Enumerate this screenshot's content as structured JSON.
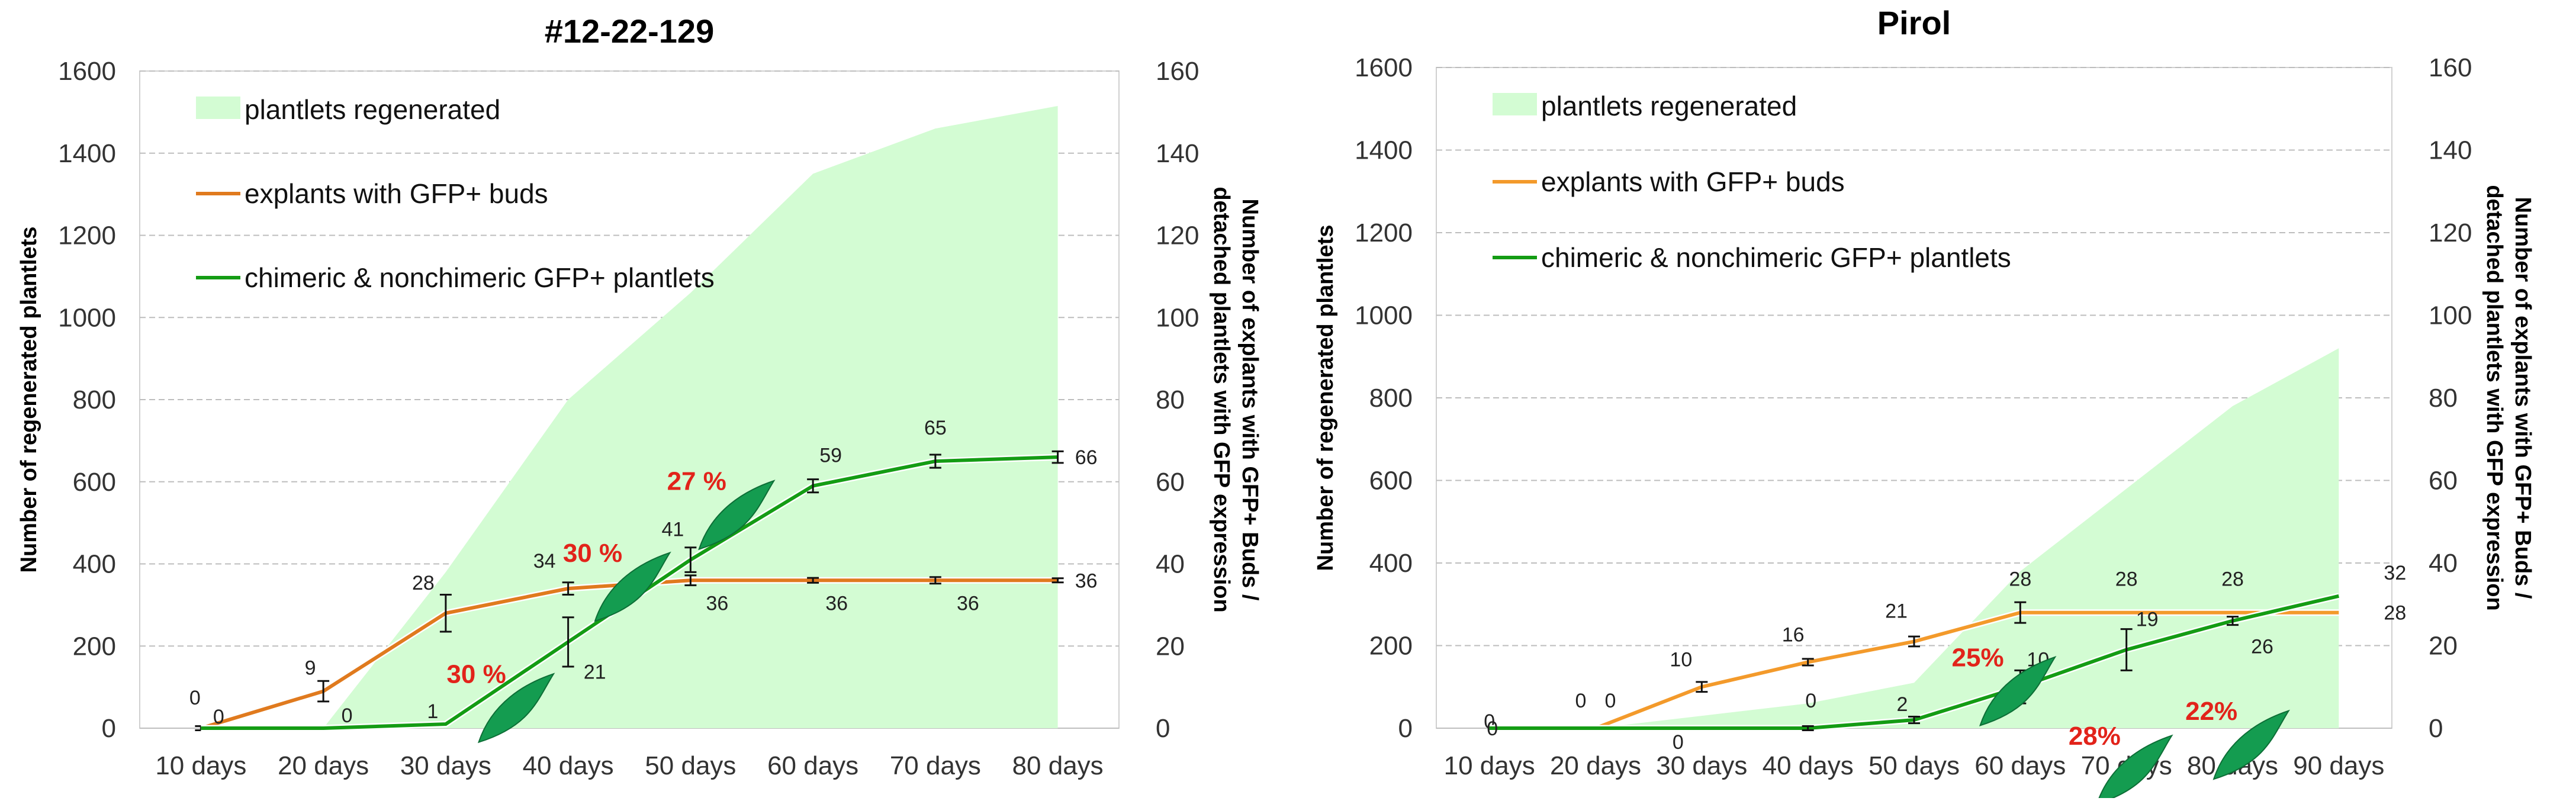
{
  "chart_data": [
    {
      "type": "area+line",
      "title": "#12-22-129",
      "categories": [
        "10 days",
        "20 days",
        "30 days",
        "40 days",
        "50 days",
        "60 days",
        "70 days",
        "80 days"
      ],
      "ylabel_left": "Number of regenerated plantlets",
      "ylabel_right": "Number of explants with GFP+ Buds / detached plantlets with GFP expression",
      "ylim_left": [
        0,
        1600
      ],
      "ylim_right": [
        0,
        160
      ],
      "yticks_left": [
        "0",
        "200",
        "400",
        "600",
        "800",
        "1000",
        "1200",
        "1400",
        "1600"
      ],
      "yticks_right": [
        "0",
        "20",
        "40",
        "60",
        "80",
        "100",
        "120",
        "140",
        "160"
      ],
      "grid": true,
      "legend": "top-left",
      "series": [
        {
          "name": "plantlets regenerated",
          "kind": "area",
          "axis": "left",
          "color": "#d3fcd3",
          "values": [
            0,
            0,
            380,
            800,
            1060,
            1350,
            1460,
            1515
          ]
        },
        {
          "name": "explants with GFP+ buds",
          "kind": "line",
          "axis": "right",
          "color": "#e07a1e",
          "values": [
            0,
            9,
            28,
            34,
            36,
            36,
            36,
            36
          ],
          "errors": [
            0.5,
            2.5,
            4.5,
            1.5,
            1.2,
            0.6,
            0.8,
            0.5
          ],
          "labels": [
            "0",
            "9",
            "28",
            "34",
            "36",
            "36",
            "36",
            "36"
          ]
        },
        {
          "name": "chimeric & nonchimeric GFP+ plantlets",
          "kind": "line",
          "axis": "right",
          "color": "#149c14",
          "values": [
            0,
            0,
            1,
            21,
            41,
            59,
            65,
            66
          ],
          "errors": [
            0,
            0,
            0,
            6,
            3,
            1.6,
            1.6,
            1.4
          ],
          "labels": [
            "0",
            "0",
            "1",
            "21",
            "41",
            "59",
            "65",
            "66"
          ]
        }
      ],
      "annotations": [
        {
          "text": "30 %",
          "x_index": 2.25,
          "y": 11
        },
        {
          "text": "30 %",
          "x_index": 3.2,
          "y": 40.5
        },
        {
          "text": "27 %",
          "x_index": 4.05,
          "y": 58
        }
      ]
    },
    {
      "type": "area+line",
      "title": "Pirol",
      "categories": [
        "10 days",
        "20 days",
        "30 days",
        "40 days",
        "50 days",
        "60 days",
        "70 days",
        "80 days",
        "90 days"
      ],
      "ylabel_left": "Number of regenerated plantlets",
      "ylabel_right": "Number of explants with GFP+ Buds / detached plantlets with GFP expression",
      "ylim_left": [
        0,
        1600
      ],
      "ylim_right": [
        0,
        160
      ],
      "yticks_left": [
        "0",
        "200",
        "400",
        "600",
        "800",
        "1000",
        "1200",
        "1400",
        "1600"
      ],
      "yticks_right": [
        "0",
        "20",
        "40",
        "60",
        "80",
        "100",
        "120",
        "140",
        "160"
      ],
      "grid": true,
      "legend": "top-left",
      "series": [
        {
          "name": "plantlets regenerated",
          "kind": "area",
          "axis": "left",
          "color": "#d3fcd3",
          "values": [
            0,
            0,
            30,
            60,
            110,
            380,
            580,
            780,
            920
          ]
        },
        {
          "name": "explants with GFP+ buds",
          "kind": "line",
          "axis": "right",
          "color": "#f39a2b",
          "values": [
            0,
            0,
            10,
            16,
            21,
            28,
            28,
            28,
            28
          ],
          "errors": [
            0,
            0,
            1.2,
            0.8,
            1.2,
            2.5,
            0,
            0,
            0
          ],
          "labels": [
            "0",
            "0",
            "10",
            "16",
            "21",
            "28",
            "28",
            "28",
            "28"
          ]
        },
        {
          "name": "chimeric & nonchimeric GFP+ plantlets",
          "kind": "line",
          "axis": "right",
          "color": "#149c14",
          "values": [
            0,
            0,
            0,
            0,
            2,
            10,
            19,
            26,
            32
          ],
          "errors": [
            0,
            0,
            0,
            0.5,
            0.8,
            4,
            5,
            1,
            0
          ],
          "labels": [
            "0",
            "0",
            "0",
            "0",
            "2",
            "10",
            "19",
            "26",
            "32"
          ]
        }
      ],
      "annotations": [
        {
          "text": "25%",
          "x_index": 4.6,
          "y": 15
        },
        {
          "text": "28%",
          "x_index": 5.7,
          "y": -4
        },
        {
          "text": "22%",
          "x_index": 6.8,
          "y": 2
        }
      ]
    }
  ]
}
